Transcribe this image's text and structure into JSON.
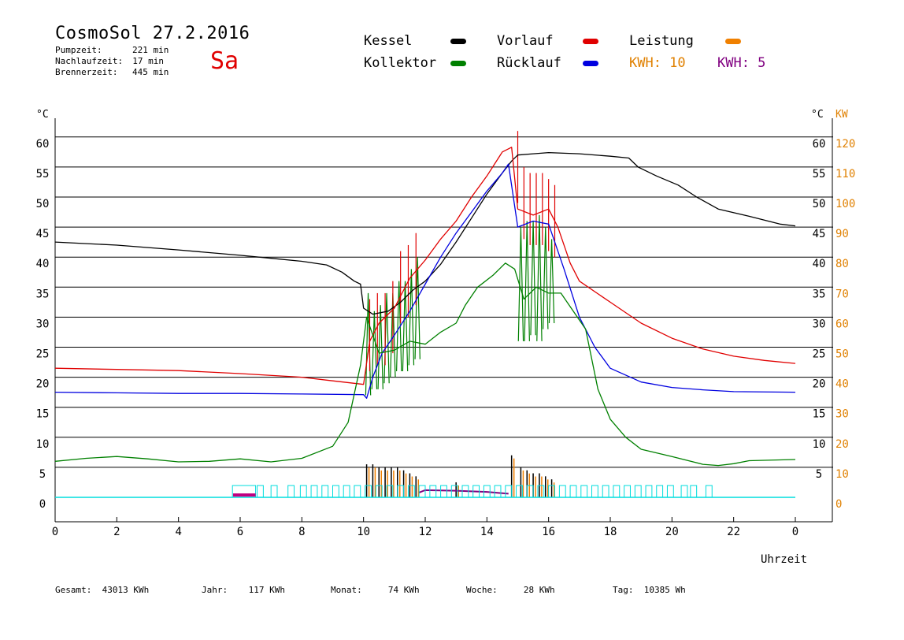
{
  "header": {
    "title": "CosmoSol 27.2.2016",
    "day": "Sa",
    "stats": [
      {
        "label": "Pumpzeit:",
        "value": "221 min"
      },
      {
        "label": "Nachlaufzeit:",
        "value": "17 min"
      },
      {
        "label": "Brennerzeit:",
        "value": "445 min"
      }
    ]
  },
  "legend": {
    "items": [
      {
        "label": "Kessel",
        "color": "#000000"
      },
      {
        "label": "Vorlauf",
        "color": "#e00000"
      },
      {
        "label": "Leistung",
        "color": "#f08000"
      },
      {
        "label": "Kollektor",
        "color": "#008000"
      },
      {
        "label": "Rücklauf",
        "color": "#0000e0"
      }
    ],
    "kwh": [
      {
        "label": "KWH: 10",
        "color": "#e08000"
      },
      {
        "label": "KWH: 5",
        "color": "#800080"
      }
    ]
  },
  "footer": {
    "gesamt_label": "Gesamt:",
    "gesamt_value": "43013 KWh",
    "jahr_label": "Jahr:",
    "jahr_value": "117 KWh",
    "monat_label": "Monat:",
    "monat_value": "74 KWh",
    "woche_label": "Woche:",
    "woche_value": "28 KWh",
    "tag_label": "Tag:",
    "tag_value": "10385 Wh"
  },
  "chart_data": {
    "type": "line",
    "xlabel": "Uhrzeit",
    "ylabel_left": "°C",
    "ylabel_right": "°C",
    "ylabel_right2": "KW",
    "x_ticks": [
      "0",
      "2",
      "4",
      "6",
      "8",
      "10",
      "12",
      "14",
      "16",
      "18",
      "20",
      "22",
      "0"
    ],
    "y_ticks_left": [
      "0",
      "5",
      "10",
      "15",
      "20",
      "25",
      "30",
      "35",
      "40",
      "45",
      "50",
      "55",
      "60"
    ],
    "y_ticks_right": [
      "5",
      "10",
      "15",
      "20",
      "25",
      "30",
      "35",
      "40",
      "45",
      "50",
      "55",
      "60"
    ],
    "kw_ticks": [
      "0",
      "10",
      "20",
      "30",
      "40",
      "50",
      "60",
      "70",
      "80",
      "90",
      "100",
      "110",
      "120"
    ],
    "xlim": [
      0,
      24
    ],
    "ylim": [
      0,
      60
    ],
    "kw_lim": [
      0,
      120
    ],
    "grid": true,
    "series": [
      {
        "name": "Kessel",
        "color": "#000000",
        "points": [
          [
            0,
            42.5
          ],
          [
            2,
            42.0
          ],
          [
            4,
            41.2
          ],
          [
            6,
            40.3
          ],
          [
            7,
            39.8
          ],
          [
            8,
            39.3
          ],
          [
            8.8,
            38.7
          ],
          [
            9.3,
            37.5
          ],
          [
            9.7,
            36.0
          ],
          [
            9.9,
            35.5
          ],
          [
            10.0,
            31.5
          ],
          [
            10.3,
            30.5
          ],
          [
            10.8,
            31.0
          ],
          [
            11.2,
            32.5
          ],
          [
            11.6,
            34.5
          ],
          [
            12,
            36.0
          ],
          [
            12.5,
            38.8
          ],
          [
            13,
            42.5
          ],
          [
            13.5,
            46.5
          ],
          [
            14,
            50.5
          ],
          [
            14.5,
            54.0
          ],
          [
            14.8,
            56.0
          ],
          [
            15,
            57.0
          ],
          [
            15.5,
            57.2
          ],
          [
            16,
            57.4
          ],
          [
            17,
            57.2
          ],
          [
            18,
            56.8
          ],
          [
            18.6,
            56.5
          ],
          [
            18.9,
            55.0
          ],
          [
            19.5,
            53.5
          ],
          [
            20.2,
            52.0
          ],
          [
            20.8,
            50.0
          ],
          [
            21.5,
            48.0
          ],
          [
            22.5,
            46.8
          ],
          [
            23.5,
            45.5
          ],
          [
            24,
            45.2
          ]
        ]
      },
      {
        "name": "Vorlauf",
        "color": "#e00000",
        "points": [
          [
            0,
            21.5
          ],
          [
            2,
            21.3
          ],
          [
            4,
            21.1
          ],
          [
            6,
            20.6
          ],
          [
            8,
            20.0
          ],
          [
            9,
            19.4
          ],
          [
            10,
            18.8
          ],
          [
            10.2,
            26.0
          ],
          [
            10.5,
            29.0
          ],
          [
            11,
            31.5
          ],
          [
            11.5,
            36.5
          ],
          [
            12,
            39.5
          ],
          [
            12.5,
            43.0
          ],
          [
            13,
            46.0
          ],
          [
            13.5,
            50.0
          ],
          [
            14,
            53.5
          ],
          [
            14.5,
            57.5
          ],
          [
            14.8,
            58.3
          ],
          [
            15,
            48.0
          ],
          [
            15.5,
            47.0
          ],
          [
            16,
            48.0
          ],
          [
            16.3,
            45.0
          ],
          [
            16.7,
            39.0
          ],
          [
            17,
            36.0
          ],
          [
            18,
            32.5
          ],
          [
            19,
            29.0
          ],
          [
            20,
            26.5
          ],
          [
            21,
            24.7
          ],
          [
            22,
            23.5
          ],
          [
            23,
            22.8
          ],
          [
            24,
            22.3
          ]
        ]
      },
      {
        "name": "Rücklauf",
        "color": "#0000e0",
        "points": [
          [
            0,
            17.5
          ],
          [
            2,
            17.4
          ],
          [
            4,
            17.3
          ],
          [
            6,
            17.3
          ],
          [
            8,
            17.2
          ],
          [
            10,
            17.1
          ],
          [
            10.1,
            16.5
          ],
          [
            10.3,
            20.0
          ],
          [
            10.6,
            24.0
          ],
          [
            11,
            27.0
          ],
          [
            11.5,
            31.0
          ],
          [
            12,
            35.5
          ],
          [
            12.5,
            40.0
          ],
          [
            13,
            44.0
          ],
          [
            13.5,
            47.5
          ],
          [
            14,
            51.0
          ],
          [
            14.5,
            54.0
          ],
          [
            14.7,
            55.5
          ],
          [
            15,
            45.0
          ],
          [
            15.5,
            46.0
          ],
          [
            16,
            45.5
          ],
          [
            16.5,
            38.0
          ],
          [
            17,
            30.0
          ],
          [
            17.5,
            25.0
          ],
          [
            18,
            21.5
          ],
          [
            19,
            19.2
          ],
          [
            20,
            18.3
          ],
          [
            21,
            17.9
          ],
          [
            22,
            17.6
          ],
          [
            24,
            17.5
          ]
        ]
      },
      {
        "name": "Kollektor",
        "color": "#008000",
        "points": [
          [
            0,
            6.0
          ],
          [
            1,
            6.5
          ],
          [
            2,
            6.8
          ],
          [
            3,
            6.4
          ],
          [
            4,
            5.9
          ],
          [
            5,
            6.0
          ],
          [
            6,
            6.4
          ],
          [
            7,
            5.9
          ],
          [
            8,
            6.5
          ],
          [
            9,
            8.5
          ],
          [
            9.5,
            12.5
          ],
          [
            9.9,
            22.0
          ],
          [
            10.1,
            30.0
          ],
          [
            10.5,
            24.0
          ],
          [
            11,
            24.5
          ],
          [
            11.5,
            26.0
          ],
          [
            12,
            25.5
          ],
          [
            12.5,
            27.5
          ],
          [
            13,
            29.0
          ],
          [
            13.3,
            32.0
          ],
          [
            13.7,
            35.0
          ],
          [
            14.2,
            37.0
          ],
          [
            14.6,
            39.0
          ],
          [
            14.9,
            38.0
          ],
          [
            15.2,
            33.0
          ],
          [
            15.6,
            35.0
          ],
          [
            16,
            34.0
          ],
          [
            16.4,
            34.0
          ],
          [
            16.8,
            31.0
          ],
          [
            17.2,
            28.0
          ],
          [
            17.6,
            18.0
          ],
          [
            18,
            13.0
          ],
          [
            18.5,
            10.0
          ],
          [
            19,
            8.0
          ],
          [
            20,
            6.8
          ],
          [
            21,
            5.5
          ],
          [
            21.5,
            5.3
          ],
          [
            22,
            5.6
          ],
          [
            22.5,
            6.1
          ],
          [
            24,
            6.3
          ]
        ]
      }
    ],
    "collector_spikes": {
      "color": "#008000",
      "x": [
        10.15,
        10.35,
        10.55,
        10.75,
        10.95,
        11.15,
        11.35,
        11.55,
        11.75,
        15.1,
        15.3,
        15.5,
        15.7,
        15.9,
        16.1
      ],
      "y_low": [
        17,
        18,
        18,
        19,
        20,
        21,
        21,
        22,
        23,
        26,
        26,
        27,
        26,
        28,
        29
      ],
      "y_high": [
        34,
        31,
        32,
        34,
        34,
        36,
        36,
        38,
        40,
        45,
        46,
        46,
        47,
        45,
        43
      ]
    },
    "vorlauf_spikes": {
      "color": "#e00000",
      "x": [
        10.2,
        10.45,
        10.7,
        10.95,
        11.2,
        11.45,
        11.7,
        15.0,
        15.2,
        15.4,
        15.6,
        15.8,
        16.0,
        16.2
      ],
      "y_high": [
        33,
        34,
        34,
        36,
        41,
        42,
        44,
        61,
        55,
        54,
        54,
        54,
        53,
        52
      ]
    },
    "power_bars": {
      "color_dark": "#000000",
      "color_orange": "#f08000",
      "x": [
        10.1,
        10.3,
        10.5,
        10.7,
        10.9,
        11.1,
        11.3,
        11.5,
        11.7,
        13,
        14.8,
        15.1,
        15.3,
        15.5,
        15.7,
        15.9,
        16.1
      ],
      "kw": [
        11,
        11,
        10,
        10,
        10,
        10,
        9,
        8,
        7,
        5,
        14,
        10,
        9,
        8,
        8,
        7,
        6
      ]
    },
    "pump_bar_cyan": {
      "color": "#00dddd",
      "y": 0
    }
  }
}
